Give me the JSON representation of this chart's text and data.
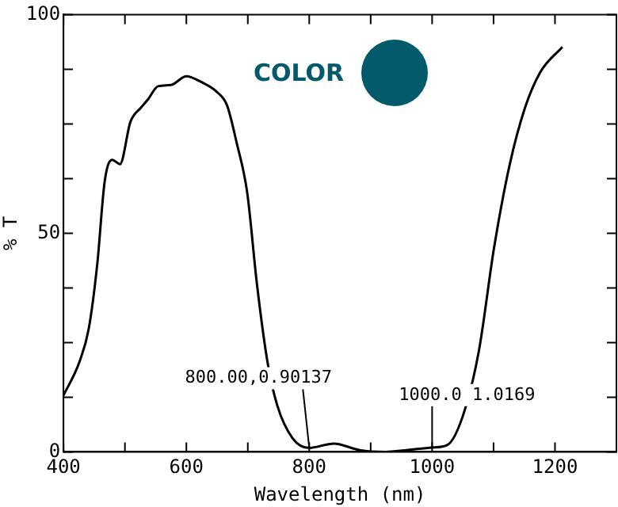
{
  "chart_data": {
    "type": "line",
    "xlabel": "Wavelength (nm)",
    "ylabel": "% T",
    "x": [
      400,
      426,
      441,
      455,
      467,
      479,
      492,
      509,
      526,
      537,
      554,
      575,
      600,
      624,
      649,
      666,
      682,
      699,
      715,
      732,
      748,
      773,
      800,
      840,
      882,
      924,
      958,
      1000,
      1025,
      1050,
      1076,
      1101,
      1126,
      1151,
      1176,
      1212
    ],
    "series": [
      {
        "color": "#000000",
        "values": [
          12.9,
          20.6,
          28.1,
          43,
          61.8,
          66.8,
          65.8,
          75.5,
          78.7,
          80.5,
          83.6,
          83.9,
          85.9,
          84.6,
          82.4,
          79.3,
          70.6,
          59.3,
          38.2,
          20.6,
          10.6,
          3.1,
          0.9,
          1.9,
          0.4,
          0,
          0.4,
          1.0,
          1.6,
          8.2,
          23,
          46.8,
          65.5,
          78.6,
          86.8,
          92.6
        ]
      }
    ],
    "xlim": [
      400,
      1300
    ],
    "xticks": [
      400,
      {
        "value": 500,
        "label": null
      },
      600,
      {
        "value": 700,
        "label": null
      },
      800,
      {
        "value": 900,
        "label": null
      },
      1000,
      {
        "value": 1100,
        "label": null
      },
      1200
    ],
    "ylim": [
      0,
      100
    ],
    "yticks": [
      0,
      {
        "value": 12.5,
        "label": null
      },
      {
        "value": 25,
        "label": null
      },
      {
        "value": 37.5,
        "label": null
      },
      50,
      {
        "value": 62.5,
        "label": null
      },
      {
        "value": 75,
        "label": null
      },
      {
        "value": 87.5,
        "label": null
      },
      100
    ],
    "annotations": [
      "COLOR",
      {
        "text": "800.00,0.90137",
        "x": 800,
        "y": 0.90137
      },
      {
        "text": "1000.0 1.0169",
        "x": 1000,
        "y": 1.0169
      }
    ],
    "grid": false,
    "legend": false,
    "marker": "none",
    "line_style": "solid"
  }
}
